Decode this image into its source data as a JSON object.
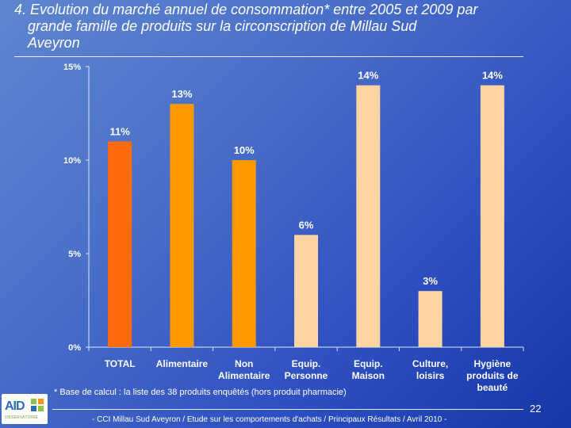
{
  "title": {
    "line1": "4. Evolution du marché annuel de consommation* entre 2005 et 2009 par",
    "line2": "grande famille de produits sur la circonscription de Millau Sud",
    "line3": "Aveyron"
  },
  "chart_data": {
    "type": "bar",
    "categories": [
      [
        "TOTAL"
      ],
      [
        "Alimentaire"
      ],
      [
        "Non",
        "Alimentaire"
      ],
      [
        "Equip.",
        "Personne"
      ],
      [
        "Equip.",
        "Maison"
      ],
      [
        "Culture,",
        "loisirs"
      ],
      [
        "Hygiène",
        "produits de",
        "beauté"
      ]
    ],
    "values": [
      11,
      13,
      10,
      6,
      14,
      3,
      14
    ],
    "data_labels": [
      "11%",
      "13%",
      "10%",
      "6%",
      "14%",
      "3%",
      "14%"
    ],
    "bar_colors": [
      "#ff6a0a",
      "#ff9900",
      "#ff9900",
      "#ffd4a3",
      "#ffd4a3",
      "#ffd4a3",
      "#ffd4a3"
    ],
    "yticks": [
      0,
      5,
      10,
      15
    ],
    "ytick_labels": [
      "0%",
      "5%",
      "10%",
      "15%"
    ],
    "ylim": [
      0,
      15
    ],
    "title": "",
    "xlabel": "",
    "ylabel": ""
  },
  "footnote": "* Base de calcul : la liste des 38 produits enquêtés (hors produit pharmacie)",
  "logo": {
    "text": "AID",
    "sub": "OBSERVATOIRE"
  },
  "page_number": "22",
  "footer": "- CCI Millau Sud Aveyron / Etude sur les comportements d'achats / Principaux Résultats / Avril 2010 -"
}
